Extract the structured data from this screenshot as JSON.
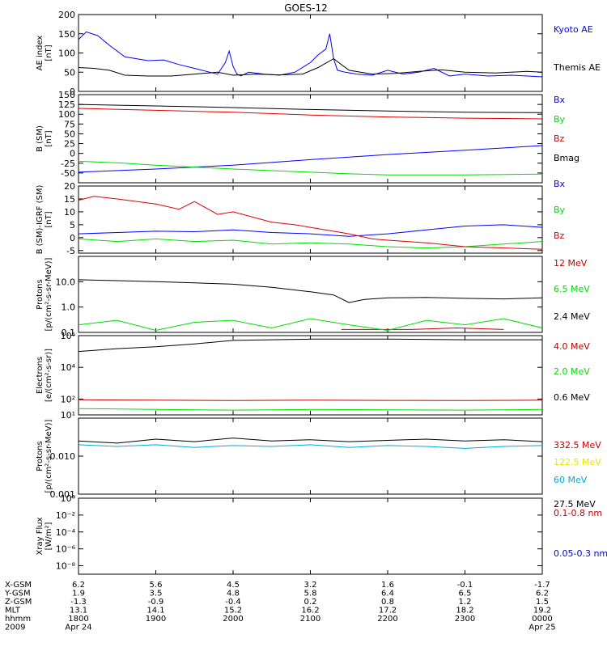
{
  "title": "GOES-12",
  "chart_data": [
    {
      "type": "line",
      "ylabel": [
        "AE index",
        "[nT]"
      ],
      "ylim": [
        0,
        200
      ],
      "yscale": "linear",
      "yticks": [
        {
          "v": 0,
          "label": "0"
        },
        {
          "v": 50,
          "label": "50"
        },
        {
          "v": 100,
          "label": "100"
        },
        {
          "v": 150,
          "label": "150"
        },
        {
          "v": 200,
          "label": "200"
        }
      ],
      "series": [
        {
          "name": "Kyoto AE",
          "color": "#0000ff",
          "x": [
            18.0,
            18.1,
            18.25,
            18.4,
            18.6,
            18.9,
            19.1,
            19.3,
            19.5,
            19.7,
            19.8,
            19.9,
            19.95,
            20.0,
            20.05,
            20.1,
            20.2,
            20.4,
            20.6,
            20.8,
            21.0,
            21.1,
            21.2,
            21.25,
            21.3,
            21.35,
            21.45,
            21.6,
            21.8,
            22.0,
            22.2,
            22.4,
            22.6,
            22.8,
            23.0,
            23.3,
            23.6,
            24.0
          ],
          "values": [
            135,
            155,
            145,
            120,
            90,
            80,
            82,
            70,
            60,
            50,
            45,
            75,
            105,
            65,
            45,
            40,
            50,
            45,
            42,
            50,
            75,
            95,
            110,
            150,
            85,
            55,
            50,
            45,
            42,
            55,
            45,
            50,
            60,
            40,
            45,
            40,
            42,
            38
          ]
        },
        {
          "name": "Themis AE",
          "color": "#000000",
          "x": [
            18.0,
            18.2,
            18.4,
            18.6,
            18.9,
            19.2,
            19.5,
            19.8,
            20.0,
            20.3,
            20.6,
            20.9,
            21.1,
            21.3,
            21.5,
            21.8,
            22.1,
            22.4,
            22.7,
            23.0,
            23.4,
            23.8,
            24.0
          ],
          "values": [
            62,
            60,
            55,
            42,
            40,
            40,
            45,
            50,
            42,
            45,
            43,
            45,
            62,
            85,
            55,
            45,
            47,
            52,
            56,
            50,
            48,
            52,
            50
          ]
        }
      ]
    },
    {
      "type": "line",
      "ylabel": [
        "B (SM)",
        "[nT]"
      ],
      "ylim": [
        -75,
        150
      ],
      "yscale": "linear",
      "yticks": [
        {
          "v": -50,
          "label": "-50"
        },
        {
          "v": -25,
          "label": "-25"
        },
        {
          "v": 0,
          "label": "0"
        },
        {
          "v": 25,
          "label": "25"
        },
        {
          "v": 50,
          "label": "50"
        },
        {
          "v": 75,
          "label": "75"
        },
        {
          "v": 100,
          "label": "100"
        },
        {
          "v": 125,
          "label": "125"
        },
        {
          "v": 150,
          "label": "150"
        }
      ],
      "series": [
        {
          "name": "Bx",
          "color": "#0000ff",
          "x": [
            18.0,
            19.0,
            20.0,
            21.0,
            22.0,
            23.0,
            24.0
          ],
          "values": [
            -48,
            -40,
            -30,
            -16,
            -3,
            8,
            20
          ]
        },
        {
          "name": "By",
          "color": "#00dd00",
          "x": [
            18.0,
            18.5,
            19.0,
            20.0,
            21.0,
            21.5,
            22.0,
            23.0,
            24.0
          ],
          "values": [
            -20,
            -24,
            -30,
            -40,
            -48,
            -52,
            -55,
            -55,
            -53
          ]
        },
        {
          "name": "Bz",
          "color": "#dd0000",
          "x": [
            18.0,
            19.0,
            20.0,
            21.0,
            22.0,
            23.0,
            24.0
          ],
          "values": [
            115,
            110,
            105,
            98,
            93,
            90,
            88
          ]
        },
        {
          "name": "Bmag",
          "color": "#000000",
          "x": [
            18.0,
            19.0,
            20.0,
            21.0,
            22.0,
            23.0,
            24.0
          ],
          "values": [
            125,
            121,
            117,
            112,
            108,
            105,
            104
          ]
        }
      ]
    },
    {
      "type": "line",
      "ylabel": [
        "B (SM)-IGRF (SM)",
        "[nT]"
      ],
      "ylim": [
        -6,
        20
      ],
      "yscale": "linear",
      "yticks": [
        {
          "v": -5,
          "label": "-5"
        },
        {
          "v": 0,
          "label": "0"
        },
        {
          "v": 5,
          "label": "5"
        },
        {
          "v": 10,
          "label": "10"
        },
        {
          "v": 15,
          "label": "15"
        },
        {
          "v": 20,
          "label": "20"
        }
      ],
      "series": [
        {
          "name": "Bx",
          "color": "#0000ff",
          "x": [
            18.0,
            18.5,
            19.0,
            19.5,
            20.0,
            20.5,
            21.0,
            21.5,
            22.0,
            22.5,
            23.0,
            23.5,
            24.0
          ],
          "values": [
            1.5,
            2.0,
            2.5,
            2.3,
            3.0,
            2.0,
            1.5,
            0.5,
            1.5,
            3.0,
            4.5,
            5.0,
            4.0
          ]
        },
        {
          "name": "By",
          "color": "#00dd00",
          "x": [
            18.0,
            18.5,
            19.0,
            19.5,
            20.0,
            20.5,
            21.0,
            21.5,
            22.0,
            22.5,
            23.0,
            23.5,
            24.0
          ],
          "values": [
            -0.5,
            -1.5,
            -0.5,
            -1.5,
            -1.0,
            -2.5,
            -2.0,
            -2.5,
            -3.5,
            -4.0,
            -3.5,
            -2.5,
            -1.5
          ]
        },
        {
          "name": "Bz",
          "color": "#dd0000",
          "x": [
            18.0,
            18.2,
            18.5,
            19.0,
            19.3,
            19.5,
            19.8,
            20.0,
            20.5,
            20.8,
            21.0,
            21.5,
            21.8,
            22.0,
            22.5,
            23.0,
            23.5,
            24.0
          ],
          "values": [
            14.5,
            16.0,
            15.0,
            13.0,
            11.0,
            14.0,
            9.0,
            10.0,
            6.0,
            5.0,
            4.0,
            1.5,
            -0.5,
            -1.0,
            -2.0,
            -3.5,
            -4.0,
            -4.5
          ]
        }
      ]
    },
    {
      "type": "line",
      "ylabel": [
        "Protons",
        "[p/(cm²-s-sr-MeV)]"
      ],
      "ylim": [
        0.1,
        100
      ],
      "yscale": "log",
      "yticks": [
        {
          "v": 0.1,
          "label": "0.1"
        },
        {
          "v": 1,
          "label": "1.0"
        },
        {
          "v": 10,
          "label": "10.0"
        }
      ],
      "series": [
        {
          "name": "12 MeV",
          "color": "#c00000",
          "x": [
            21.4,
            22.3,
            22.9,
            23.5
          ],
          "values": [
            0.13,
            0.13,
            0.15,
            0.13
          ]
        },
        {
          "name": "6.5 MeV",
          "color": "#00dd00",
          "x": [
            18.0,
            18.5,
            19.0,
            19.5,
            20.0,
            20.5,
            21.0,
            21.5,
            22.0,
            22.5,
            23.0,
            23.5,
            24.0
          ],
          "values": [
            0.2,
            0.3,
            0.12,
            0.25,
            0.3,
            0.15,
            0.35,
            0.2,
            0.12,
            0.3,
            0.2,
            0.35,
            0.15
          ]
        },
        {
          "name": "2.4 MeV",
          "color": "#000000",
          "x": [
            18.0,
            18.5,
            19.0,
            19.5,
            20.0,
            20.5,
            21.0,
            21.3,
            21.5,
            21.7,
            22.0,
            22.5,
            23.0,
            23.5,
            24.0
          ],
          "values": [
            12,
            11,
            10,
            9,
            8,
            6,
            4,
            3,
            1.5,
            2,
            2.3,
            2.4,
            2.2,
            2.1,
            2.3
          ]
        }
      ]
    },
    {
      "type": "line",
      "ylabel": [
        "Electrons",
        "[e/(cm²-s-sr)]"
      ],
      "ylim": [
        10,
        1000000
      ],
      "yscale": "log",
      "yticks": [
        {
          "v": 10,
          "label": "10¹"
        },
        {
          "v": 100,
          "label": "10²"
        },
        {
          "v": 10000,
          "label": "10⁴"
        },
        {
          "v": 1000000,
          "label": "10⁶"
        }
      ],
      "series": [
        {
          "name": "4.0 MeV",
          "color": "#c00000",
          "x": [
            18.0,
            19.0,
            20.0,
            21.0,
            22.0,
            23.0,
            24.0
          ],
          "values": [
            90,
            85,
            80,
            85,
            82,
            80,
            85
          ]
        },
        {
          "name": "2.0 MeV",
          "color": "#00dd00",
          "x": [
            18.0,
            19.0,
            20.0,
            21.0,
            22.0,
            23.0,
            24.0
          ],
          "values": [
            25,
            22,
            20,
            22,
            21,
            20,
            22
          ]
        },
        {
          "name": "0.6 MeV",
          "color": "#000000",
          "x": [
            18.0,
            18.5,
            19.0,
            19.5,
            20.0,
            21.0,
            22.0,
            23.0,
            24.0
          ],
          "values": [
            100000,
            150000,
            200000,
            300000,
            500000,
            600000,
            600000,
            550000,
            550000
          ]
        }
      ]
    },
    {
      "type": "line",
      "ylabel": [
        "Protons",
        "[p/(cm²-s-sr-MeV)]"
      ],
      "ylim": [
        0.001,
        0.1
      ],
      "yscale": "log",
      "yticks": [
        {
          "v": 0.001,
          "label": "0.001"
        },
        {
          "v": 0.01,
          "label": "0.010"
        }
      ],
      "series": [
        {
          "name": "332.5 MeV",
          "color": "#c00000",
          "x": [],
          "values": []
        },
        {
          "name": "122.5 MeV",
          "color": "#e6e600",
          "x": [],
          "values": []
        },
        {
          "name": "60 MeV",
          "color": "#00aadd",
          "x": [
            18.0,
            18.5,
            19.0,
            19.5,
            20.0,
            20.5,
            21.0,
            21.5,
            22.0,
            22.5,
            23.0,
            23.5,
            24.0
          ],
          "values": [
            0.02,
            0.018,
            0.02,
            0.017,
            0.019,
            0.018,
            0.02,
            0.017,
            0.019,
            0.018,
            0.016,
            0.018,
            0.019
          ]
        },
        {
          "name": "27.5 MeV",
          "color": "#000000",
          "x": [
            18.0,
            18.5,
            19.0,
            19.5,
            20.0,
            20.5,
            21.0,
            21.5,
            22.0,
            22.5,
            23.0,
            23.5,
            24.0
          ],
          "values": [
            0.025,
            0.022,
            0.028,
            0.024,
            0.03,
            0.025,
            0.027,
            0.024,
            0.026,
            0.028,
            0.025,
            0.027,
            0.024
          ]
        }
      ]
    },
    {
      "type": "line",
      "ylabel": [
        "Xray Flux",
        "[W/m²]"
      ],
      "ylim": [
        1e-09,
        1
      ],
      "yscale": "log",
      "yticks": [
        {
          "v": 1e-08,
          "label": "10⁻⁸"
        },
        {
          "v": 1e-06,
          "label": "10⁻⁶"
        },
        {
          "v": 0.0001,
          "label": "10⁻⁴"
        },
        {
          "v": 0.01,
          "label": "10⁻²"
        },
        {
          "v": 1,
          "label": "10⁰"
        }
      ],
      "series": [
        {
          "name": "0.1-0.8 nm",
          "color": "#c00000",
          "x": [],
          "values": []
        },
        {
          "name": "0.05-0.3 nm",
          "color": "#0000dd",
          "x": [],
          "values": []
        }
      ]
    }
  ],
  "time_axis": {
    "xlim": [
      18.0,
      24.0
    ],
    "ticks": [
      18.0,
      19.0,
      20.0,
      21.0,
      22.0,
      23.0,
      24.0
    ]
  },
  "footer": {
    "rows": [
      {
        "label": "X-GSM",
        "values": [
          "6.2",
          "5.6",
          "4.5",
          "3.2",
          "1.6",
          "-0.1",
          "-1.7"
        ]
      },
      {
        "label": "Y-GSM",
        "values": [
          "1.9",
          "3.5",
          "4.8",
          "5.8",
          "6.4",
          "6.5",
          "6.2"
        ]
      },
      {
        "label": "Z-GSM",
        "values": [
          "-1.3",
          "-0.9",
          "-0.4",
          "0.2",
          "0.8",
          "1.2",
          "1.5"
        ]
      },
      {
        "label": "MLT",
        "values": [
          "13.1",
          "14.1",
          "15.2",
          "16.2",
          "17.2",
          "18.2",
          "19.2"
        ]
      },
      {
        "label": "hhmm",
        "values": [
          "1800",
          "1900",
          "2000",
          "2100",
          "2200",
          "2300",
          "0000"
        ]
      },
      {
        "label": "2009",
        "values": [
          "Apr 24",
          "",
          "",
          "",
          "",
          "",
          "Apr 25"
        ]
      }
    ]
  }
}
